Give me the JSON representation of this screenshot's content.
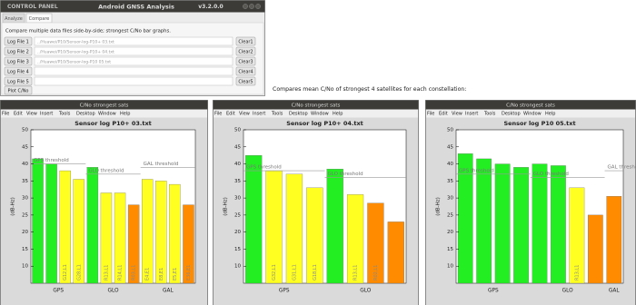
{
  "control_panel": {
    "title": "CONTROL PANEL",
    "app": "Android GNSS Analysis",
    "version": "v3.2.0.0",
    "tabs": [
      "Analyze",
      "Compare"
    ],
    "instructions": "Compare multiple data files side-by-side; strongest C/No bar graphs.",
    "files": [
      {
        "button": "Log File 1",
        "path": "../Huawei/P10/Sensor-log-P10+ 03.txt",
        "clear": "Clear1"
      },
      {
        "button": "Log File 2",
        "path": "../Huawei/P10/Sensor-log-P10+ 04.txt",
        "clear": "Clear2"
      },
      {
        "button": "Log File 3",
        "path": "../Huawei/P10/Sensor-log-P10 05.txt",
        "clear": "Clear3"
      },
      {
        "button": "Log File 4",
        "clear": "Clear4"
      },
      {
        "button": "Log File 5",
        "clear": "Clear5"
      }
    ],
    "plot_button": "Plot C/No"
  },
  "note": "Compares mean C/No of strongest 4 satellites for each constellation:",
  "figure_window": {
    "title": "C/No strongest sats",
    "menu": [
      "File",
      "Edit",
      "View",
      "Insert",
      "Tools",
      "Desktop",
      "Window",
      "Help"
    ]
  },
  "chart_data": [
    {
      "type": "bar",
      "title": "Sensor log P10+ 03.txt",
      "ylabel": "(dB-Hz)",
      "ylim": [
        5,
        50
      ],
      "yticks": [
        10,
        15,
        20,
        25,
        30,
        35,
        40,
        45,
        50
      ],
      "groups": [
        {
          "label": "GPS",
          "categories": [
            null,
            null,
            "G12,L1",
            "G28,L1"
          ],
          "values": [
            41.5,
            40,
            38,
            35.5
          ],
          "colors": [
            "#22ee22",
            "#22ee22",
            "#ffff22",
            "#ffff22"
          ],
          "threshold": {
            "value": 40,
            "label": "GPS threshold"
          }
        },
        {
          "label": "GLO",
          "categories": [
            null,
            "R13,L1",
            "R14,L1",
            "R03,L1"
          ],
          "values": [
            39,
            31.5,
            31.5,
            28
          ],
          "colors": [
            "#22ee22",
            "#ffff22",
            "#ffff22",
            "#ff8c00"
          ],
          "threshold": {
            "value": 37,
            "label": "GLO threshold"
          }
        },
        {
          "label": "GAL",
          "categories": [
            "E4,E1",
            "E8,E1",
            "E5,E1",
            "E36,E1"
          ],
          "values": [
            35.5,
            35,
            34,
            28
          ],
          "colors": [
            "#ffff22",
            "#ffff22",
            "#ffff22",
            "#ff8c00"
          ],
          "threshold": {
            "value": 39,
            "label": "GAL threshold"
          }
        }
      ]
    },
    {
      "type": "bar",
      "title": "Sensor log P10+ 04.txt",
      "ylabel": "(dB-Hz)",
      "ylim": [
        5,
        50
      ],
      "yticks": [
        10,
        15,
        20,
        25,
        30,
        35,
        40,
        45,
        50
      ],
      "groups": [
        {
          "label": "GPS",
          "categories": [
            null,
            "G32,L1",
            "G31,L1",
            "G18,L1"
          ],
          "values": [
            42.5,
            38,
            37,
            33
          ],
          "colors": [
            "#22ee22",
            "#ffff22",
            "#ffff22",
            "#ffff22"
          ],
          "threshold": {
            "value": 38,
            "label": "GPS threshold"
          }
        },
        {
          "label": "GLO",
          "categories": [
            null,
            "R13,L1",
            "R02,L1",
            null
          ],
          "values": [
            38.5,
            31,
            28.5,
            23
          ],
          "colors": [
            "#22ee22",
            "#ffff22",
            "#ff8c00",
            "#ff8c00"
          ],
          "threshold": {
            "value": 36,
            "label": "GLO threshold"
          }
        }
      ]
    },
    {
      "type": "bar",
      "title": "Sensor log P10 05.txt",
      "ylabel": "(dB-Hz)",
      "ylim": [
        5,
        50
      ],
      "yticks": [
        10,
        15,
        20,
        25,
        30,
        35,
        40,
        45,
        50
      ],
      "groups": [
        {
          "label": "GPS",
          "categories": [
            null,
            null,
            null,
            null
          ],
          "values": [
            43,
            41.5,
            40,
            39
          ],
          "colors": [
            "#22ee22",
            "#22ee22",
            "#22ee22",
            "#22ee22"
          ],
          "threshold": {
            "value": 37,
            "label": "GPS threshold"
          }
        },
        {
          "label": "GLO",
          "categories": [
            null,
            null,
            "R13,L1",
            null
          ],
          "values": [
            40,
            39.5,
            33,
            25
          ],
          "colors": [
            "#22ee22",
            "#22ee22",
            "#ffff22",
            "#ff8c00"
          ],
          "threshold": {
            "value": 36,
            "label": "GLO threshold"
          }
        },
        {
          "label": "GAL",
          "categories": [
            null
          ],
          "values": [
            30.5
          ],
          "colors": [
            "#ff8c00"
          ],
          "threshold": {
            "value": 38,
            "label": "GAL threshold"
          }
        }
      ]
    }
  ]
}
